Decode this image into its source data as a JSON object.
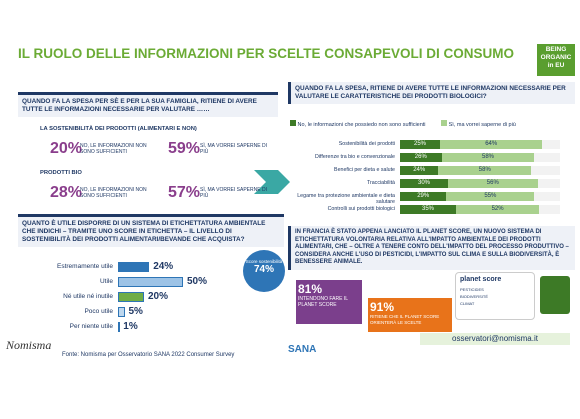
{
  "header": {
    "title": "IL RUOLO DELLE INFORMAZIONI PER SCELTE CONSAPEVOLI DI CONSUMO",
    "logo": [
      "BEING",
      "ORGANIC",
      "in EU"
    ]
  },
  "left": {
    "question": "QUANDO FA LA SPESA PER SÈ E PER LA SUA FAMIGLIA, RITIENE DI AVERE TUTTE LE INFORMAZIONI NECESSARIE PER VALUTARE ……",
    "items": [
      {
        "label": "LA SOSTENIBILITÀ DEI PRODOTTI (ALIMENTARI E NON)",
        "no_value": "20%",
        "no_label": "NO, LE INFORMAZIONI NON SONO SUFFICIENTI",
        "yes_value": "59%",
        "yes_label": "SÌ, MA VORREI SAPERNE DI PIÙ"
      },
      {
        "label": "PRODOTTI BIO",
        "no_value": "28%",
        "no_label": "NO, LE INFORMAZIONI NON SONO SUFFICIENTI",
        "yes_value": "57%",
        "yes_label": "SÌ, MA VORREI SAPERNE DI PIÙ"
      }
    ],
    "question2": "QUANTO È UTILE DISPORRE DI UN SISTEMA DI ETICHETTATURA AMBIENTALE CHE INDICHI – TRAMITE UNO SCORE IN ETICHETTA – IL LIVELLO DI SOSTENIBILITÀ DEI PRODOTTI ALIMENTARI/BEVANDE CHE ACQUISTA?",
    "chart": {
      "type": "bar",
      "categories": [
        "Estremamente utile",
        "Utile",
        "Né utile né inutile",
        "Poco utile",
        "Per niente utile"
      ],
      "values": [
        24,
        50,
        20,
        5,
        1
      ],
      "value_labels": [
        "24%",
        "50%",
        "20%",
        "5%",
        "1%"
      ],
      "colors": [
        "#2e75b6",
        "#9dc3e6",
        "#70ad47",
        "#bdd7ee",
        "#deebf7"
      ]
    },
    "score": {
      "label": "Score sostenibilità",
      "value": "74%"
    }
  },
  "right": {
    "question": "QUANDO FA LA SPESA, RITIENE DI AVERE TUTTE LE INFORMAZIONI NECESSARIE PER VALUTARE LE CARATTERISTICHE DEI PRODOTTI BIOLOGICI?",
    "chart": {
      "type": "stacked-bar",
      "categories": [
        "Sostenibilità dei prodotti",
        "Differenze tra bio e convenzionale",
        "Benefici per dieta e salute",
        "Tracciabilità",
        "Legame tra protezione ambientale e dieta salutare",
        "Controlli sui prodotti biologici"
      ],
      "series": [
        {
          "name": "No, le informazioni che possiedo non sono sufficienti",
          "color": "#3d7a26",
          "values": [
            25,
            26,
            24,
            30,
            29,
            35
          ],
          "value_labels": [
            "25%",
            "26%",
            "24%",
            "30%",
            "29%",
            "35%"
          ]
        },
        {
          "name": "Sì, ma vorrei saperne di più",
          "color": "#a9d18e",
          "values": [
            64,
            58,
            58,
            56,
            55,
            52
          ],
          "value_labels": [
            "64%",
            "58%",
            "58%",
            "56%",
            "55%",
            "52%"
          ]
        }
      ]
    },
    "info": "IN FRANCIA È STATO APPENA LANCIATO IL PLANET SCORE, UN NUOVO SISTEMA DI ETICHETTATURA VOLONTARIA RELATIVA ALL'IMPATTO AMBIENTALE DEI PRODOTTI ALIMENTARI, CHE – OLTRE A TENERE CONTO DELL'IMPATTO DEL PROCESSO PRODUTTIVO – CONSIDERA ANCHE L'USO DI PESTICIDI, L'IMPATTO SUL CLIMA E SULLA BIODIVERSITÀ, È BENESSERE ANIMALE.",
    "stats": [
      {
        "value": "81%",
        "label": "INTENDONO FARE IL PLANET SCORE"
      },
      {
        "value": "91%",
        "label": "RITIENE CHE IL PLANET SCORE ORIENTERÀ LE SCELTE"
      }
    ],
    "planet": {
      "title": "planet score",
      "rows": [
        "PESTICIDES",
        "BIODIVERSITÉ",
        "CLIMAT"
      ]
    }
  },
  "footer": {
    "logo": "Nomisma",
    "source": "Fonte: Nomisma per Osservatorio SANA 2022 Consumer Survey",
    "sana": "SANA",
    "email": "osservatori@nomisma.it"
  }
}
